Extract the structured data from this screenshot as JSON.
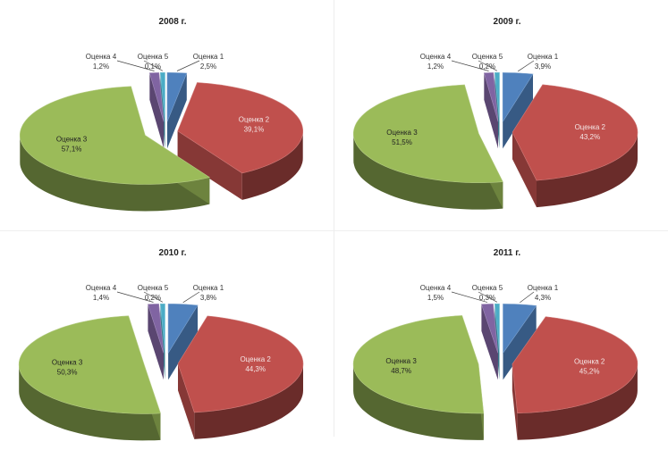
{
  "chart_data": [
    {
      "type": "pie",
      "title": "2008 г.",
      "categories": [
        "Оценка 1",
        "Оценка 2",
        "Оценка 3",
        "Оценка 4",
        "Оценка 5"
      ],
      "values": [
        2.5,
        39.1,
        57.1,
        1.2,
        0.1
      ],
      "value_labels": [
        "2,5%",
        "39,1%",
        "57,1%",
        "1,2%",
        "0,1%"
      ],
      "colors": [
        "#4f81bd",
        "#c0504d",
        "#9bbb59",
        "#8064a2",
        "#4bacc6"
      ]
    },
    {
      "type": "pie",
      "title": "2009 г.",
      "categories": [
        "Оценка 1",
        "Оценка 2",
        "Оценка 3",
        "Оценка 4",
        "Оценка 5"
      ],
      "values": [
        3.9,
        43.2,
        51.5,
        1.2,
        0.2
      ],
      "value_labels": [
        "3,9%",
        "43,2%",
        "51,5%",
        "1,2%",
        "0,2%"
      ],
      "colors": [
        "#4f81bd",
        "#c0504d",
        "#9bbb59",
        "#8064a2",
        "#4bacc6"
      ]
    },
    {
      "type": "pie",
      "title": "2010 г.",
      "categories": [
        "Оценка 1",
        "Оценка 2",
        "Оценка 3",
        "Оценка 4",
        "Оценка 5"
      ],
      "values": [
        3.8,
        44.3,
        50.3,
        1.4,
        0.2
      ],
      "value_labels": [
        "3,8%",
        "44,3%",
        "50,3%",
        "1,4%",
        "0,2%"
      ],
      "colors": [
        "#4f81bd",
        "#c0504d",
        "#9bbb59",
        "#8064a2",
        "#4bacc6"
      ]
    },
    {
      "type": "pie",
      "title": "2011 г.",
      "categories": [
        "Оценка 1",
        "Оценка 2",
        "Оценка 3",
        "Оценка 4",
        "Оценка 5"
      ],
      "values": [
        4.3,
        45.2,
        48.7,
        1.5,
        0.3
      ],
      "value_labels": [
        "4,3%",
        "45,2%",
        "48,7%",
        "1,5%",
        "0,3%"
      ],
      "colors": [
        "#4f81bd",
        "#c0504d",
        "#9bbb59",
        "#8064a2",
        "#4bacc6"
      ]
    }
  ]
}
